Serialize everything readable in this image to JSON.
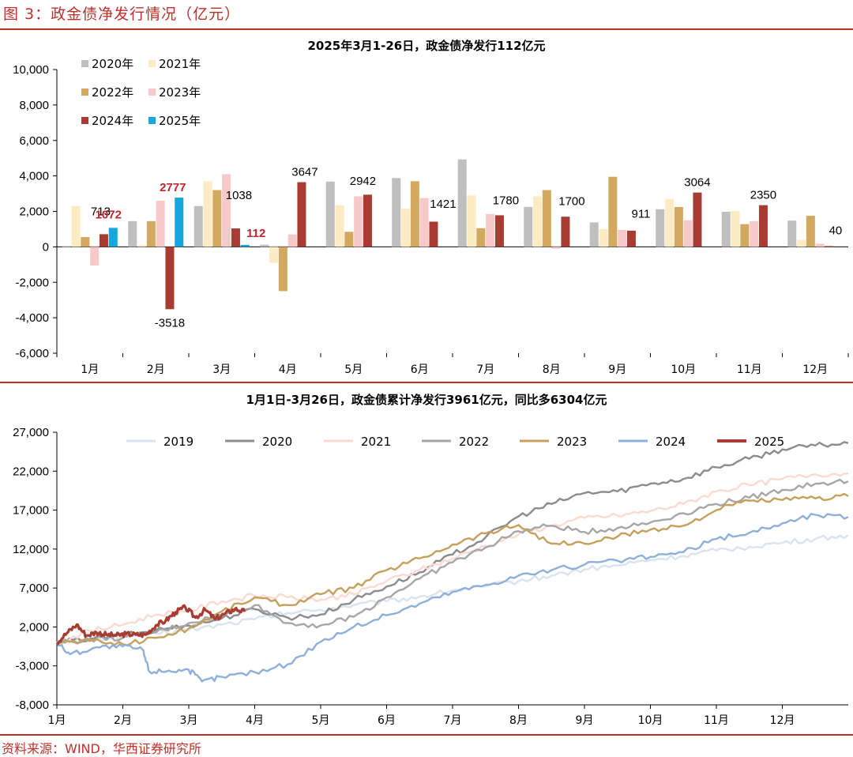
{
  "figure": {
    "title": "图 3：政金债净发行情况（亿元）",
    "source": "资料来源：WIND，华西证券研究所"
  },
  "colors": {
    "accent": "#c0302a"
  },
  "chart_data": [
    {
      "type": "bar",
      "title": "2025年3月1-26日，政金债净发行112亿元",
      "xlabel": "",
      "ylabel": "",
      "ylim": [
        -6000,
        10000
      ],
      "yticks": [
        -6000,
        -4000,
        -2000,
        0,
        2000,
        4000,
        6000,
        8000,
        10000
      ],
      "ytick_labels": [
        "-6,000",
        "-4,000",
        "-2,000",
        "0",
        "2,000",
        "4,000",
        "6,000",
        "8,000",
        "10,000"
      ],
      "grid": false,
      "legend_position": "top-left",
      "categories": [
        "1月",
        "2月",
        "3月",
        "4月",
        "5月",
        "6月",
        "7月",
        "8月",
        "9月",
        "10月",
        "11月",
        "12月"
      ],
      "series": [
        {
          "name": "2020年",
          "color": "#bfbfbf",
          "values": [
            -30,
            1450,
            2300,
            120,
            3680,
            3880,
            4930,
            2250,
            1380,
            2120,
            1980,
            1480
          ]
        },
        {
          "name": "2021年",
          "color": "#fdebc4",
          "values": [
            2300,
            100,
            3700,
            -900,
            2350,
            2150,
            2900,
            2850,
            1000,
            2700,
            2020,
            400
          ]
        },
        {
          "name": "2022年",
          "color": "#d2a95f",
          "values": [
            550,
            1450,
            3200,
            -2500,
            850,
            3700,
            1050,
            3200,
            3950,
            2250,
            1280,
            1750
          ]
        },
        {
          "name": "2023年",
          "color": "#f8c9c9",
          "values": [
            -1050,
            2600,
            4100,
            700,
            2850,
            2750,
            1850,
            -100,
            950,
            1500,
            1450,
            180
          ]
        },
        {
          "name": "2024年",
          "color": "#a83c32",
          "values": [
            713,
            -3518,
            1038,
            3647,
            2942,
            1421,
            1780,
            1700,
            911,
            3064,
            2350,
            40
          ]
        },
        {
          "name": "2025年",
          "color": "#17a6dd",
          "values": [
            1072,
            2777,
            112,
            null,
            null,
            null,
            null,
            null,
            null,
            null,
            null,
            null
          ]
        }
      ],
      "data_labels": [
        {
          "series": "2024年",
          "category": "1月",
          "text": "713",
          "highlight": false
        },
        {
          "series": "2025年",
          "category": "1月",
          "text": "1072",
          "highlight": true
        },
        {
          "series": "2025年",
          "category": "2月",
          "text": "2777",
          "highlight": true
        },
        {
          "series": "2024年",
          "category": "2月",
          "text": "-3518",
          "highlight": false
        },
        {
          "series": "2024年",
          "category": "3月",
          "text": "1038",
          "highlight": false
        },
        {
          "series": "2025年",
          "category": "3月",
          "text": "112",
          "highlight": true
        },
        {
          "series": "2024年",
          "category": "4月",
          "text": "3647",
          "highlight": false
        },
        {
          "series": "2024年",
          "category": "5月",
          "text": "2942",
          "highlight": false
        },
        {
          "series": "2024年",
          "category": "6月",
          "text": "1421",
          "highlight": false
        },
        {
          "series": "2024年",
          "category": "7月",
          "text": "1780",
          "highlight": false
        },
        {
          "series": "2024年",
          "category": "8月",
          "text": "1700",
          "highlight": false
        },
        {
          "series": "2024年",
          "category": "9月",
          "text": "911",
          "highlight": false
        },
        {
          "series": "2024年",
          "category": "10月",
          "text": "3064",
          "highlight": false
        },
        {
          "series": "2024年",
          "category": "11月",
          "text": "2350",
          "highlight": false
        },
        {
          "series": "2024年",
          "category": "12月",
          "text": "40",
          "highlight": false
        }
      ]
    },
    {
      "type": "line",
      "title": "1月1日-3月26日，政金债累计净发行3961亿元，同比多6304亿元",
      "xlabel": "",
      "ylabel": "",
      "ylim": [
        -8000,
        27000
      ],
      "yticks": [
        -8000,
        -3000,
        2000,
        7000,
        12000,
        17000,
        22000,
        27000
      ],
      "ytick_labels": [
        "-8,000",
        "-3,000",
        "2,000",
        "7,000",
        "12,000",
        "17,000",
        "22,000",
        "27,000"
      ],
      "xlim": [
        1,
        13
      ],
      "x_ticks": [
        1,
        2,
        3,
        4,
        5,
        6,
        7,
        8,
        9,
        10,
        11,
        12
      ],
      "x_tick_labels": [
        "1月",
        "2月",
        "3月",
        "4月",
        "5月",
        "6月",
        "7月",
        "8月",
        "9月",
        "10月",
        "11月",
        "12月"
      ],
      "grid": false,
      "legend_position": "top",
      "series": [
        {
          "name": "2019",
          "color": "#dae3ef",
          "x": [
            1,
            1.5,
            2,
            2.5,
            3,
            3.5,
            4,
            4.5,
            5,
            5.5,
            6,
            6.5,
            7,
            7.5,
            8,
            8.5,
            9,
            9.5,
            10,
            10.5,
            11,
            11.5,
            12,
            12.5,
            13
          ],
          "y": [
            0,
            400,
            800,
            1200,
            1600,
            2300,
            3000,
            3800,
            4200,
            4800,
            5300,
            5900,
            6700,
            7200,
            7900,
            8600,
            9400,
            9900,
            10600,
            11100,
            11800,
            12300,
            12800,
            13300,
            13800
          ]
        },
        {
          "name": "2020",
          "color": "#8c8c8c",
          "x": [
            1,
            1.5,
            2,
            2.5,
            3,
            3.5,
            4,
            4.5,
            5,
            5.5,
            6,
            6.5,
            7,
            7.5,
            8,
            8.5,
            9,
            9.5,
            10,
            10.5,
            11,
            11.5,
            12,
            12.5,
            13
          ],
          "y": [
            0,
            500,
            900,
            1600,
            2200,
            3100,
            4300,
            3200,
            3600,
            5500,
            7200,
            9000,
            11300,
            13500,
            16200,
            17800,
            19200,
            19400,
            20400,
            21000,
            22500,
            23600,
            24800,
            25300,
            25600
          ]
        },
        {
          "name": "2021",
          "color": "#fbdad0",
          "x": [
            1,
            1.5,
            2,
            2.5,
            3,
            3.5,
            4,
            4.5,
            5,
            5.5,
            6,
            6.5,
            7,
            7.5,
            8,
            8.5,
            9,
            9.5,
            10,
            10.5,
            11,
            11.5,
            12,
            12.5,
            13
          ],
          "y": [
            0,
            1500,
            2300,
            3600,
            4100,
            5300,
            6000,
            5800,
            5500,
            6200,
            7900,
            9300,
            10800,
            12400,
            13900,
            15000,
            16000,
            16300,
            16900,
            17800,
            19400,
            20200,
            21000,
            21600,
            21700
          ]
        },
        {
          "name": "2022",
          "color": "#a6a6a6",
          "x": [
            1,
            1.5,
            2,
            2.5,
            3,
            3.5,
            4,
            4.5,
            5,
            5.5,
            6,
            6.5,
            7,
            7.5,
            8,
            8.5,
            9,
            9.5,
            10,
            10.5,
            11,
            11.5,
            12,
            12.5,
            13
          ],
          "y": [
            0,
            400,
            600,
            1300,
            2500,
            3500,
            4800,
            2500,
            2200,
            3300,
            5800,
            8200,
            10300,
            12200,
            14300,
            15000,
            14200,
            14700,
            15400,
            16600,
            17800,
            18600,
            19600,
            20400,
            20700
          ]
        },
        {
          "name": "2023",
          "color": "#c5a05c",
          "x": [
            1,
            1.5,
            2,
            2.5,
            3,
            3.5,
            4,
            4.5,
            5,
            5.5,
            6,
            6.5,
            7,
            7.5,
            8,
            8.5,
            9,
            9.5,
            10,
            10.5,
            11,
            11.5,
            12,
            12.5,
            13
          ],
          "y": [
            0,
            200,
            -200,
            600,
            1800,
            4000,
            5800,
            4800,
            6200,
            7000,
            9300,
            10800,
            12600,
            14000,
            15100,
            12700,
            12700,
            13600,
            14500,
            15000,
            17000,
            18200,
            18300,
            18500,
            18800
          ]
        },
        {
          "name": "2024",
          "color": "#8eb0d8",
          "x": [
            1,
            1.2,
            1.6,
            2,
            2.3,
            2.4,
            2.7,
            3,
            3.2,
            3.5,
            4,
            4.5,
            5,
            5.5,
            6,
            6.5,
            7,
            7.5,
            8,
            8.5,
            9,
            9.5,
            10,
            10.5,
            11,
            11.5,
            12,
            12.5,
            13
          ],
          "y": [
            0,
            -1500,
            -600,
            -500,
            -900,
            -3700,
            -3600,
            -3500,
            -5000,
            -4400,
            -3800,
            -2800,
            100,
            2000,
            3500,
            5000,
            6500,
            7400,
            8600,
            9300,
            10000,
            10500,
            11000,
            11600,
            13300,
            14100,
            15300,
            16400,
            16100
          ]
        },
        {
          "name": "2025",
          "color": "#a83c32",
          "x": [
            1,
            1.15,
            1.3,
            1.45,
            1.6,
            1.75,
            1.9,
            2.05,
            2.2,
            2.35,
            2.5,
            2.65,
            2.8,
            2.95,
            3.1,
            3.25,
            3.4,
            3.55,
            3.7,
            3.85
          ],
          "y": [
            0,
            1200,
            2300,
            900,
            1300,
            1000,
            900,
            1100,
            1000,
            1000,
            2200,
            2800,
            3900,
            4500,
            3200,
            4200,
            3000,
            3700,
            4300,
            3961
          ]
        }
      ]
    }
  ]
}
